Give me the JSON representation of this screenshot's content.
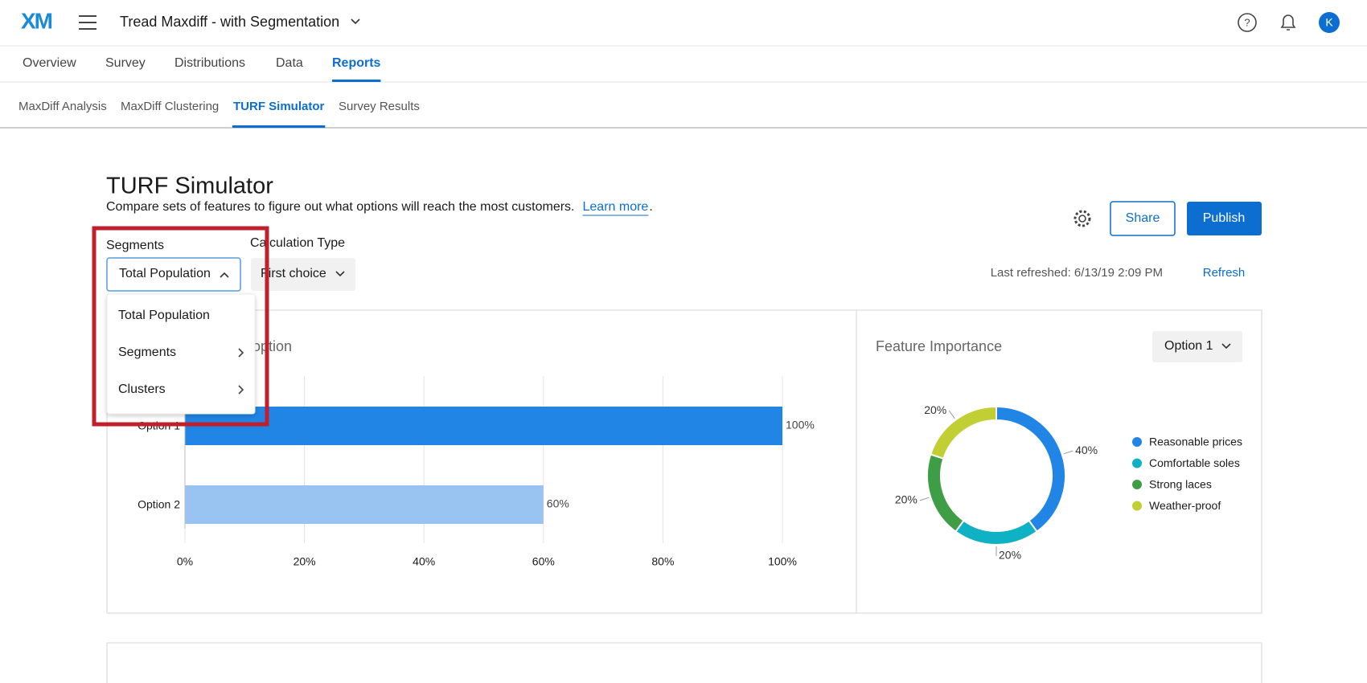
{
  "header": {
    "logo": "XM",
    "project_title": "Tread Maxdiff - with Segmentation",
    "avatar": "K"
  },
  "tabs": {
    "items": [
      "Overview",
      "Survey",
      "Distributions",
      "Data",
      "Reports"
    ],
    "active": 4
  },
  "subtabs": {
    "items": [
      "MaxDiff Analysis",
      "MaxDiff Clustering",
      "TURF Simulator",
      "Survey Results"
    ],
    "active": 2
  },
  "page": {
    "title": "TURF Simulator",
    "description": "Compare sets of features to figure out what options will reach the most customers.",
    "learn_more": "Learn more",
    "learn_more_end": ".",
    "share": "Share",
    "publish": "Publish",
    "last_refreshed": "Last refreshed: 6/13/19 2:09 PM",
    "refresh": "Refresh"
  },
  "filters": {
    "segments_label": "Segments",
    "segments_value": "Total Population",
    "segments_menu": [
      {
        "label": "Total Population",
        "submenu": false
      },
      {
        "label": "Segments",
        "submenu": true
      },
      {
        "label": "Clusters",
        "submenu": true
      }
    ],
    "calc_label": "Calculation Type",
    "calc_value": "First choice"
  },
  "chart_data": [
    {
      "type": "bar",
      "orientation": "horizontal",
      "title": "option",
      "categories": [
        "Option 1",
        "Option 2"
      ],
      "values": [
        100,
        60
      ],
      "value_labels": [
        "100%",
        "60%"
      ],
      "colors": [
        "#2185e5",
        "#99c4f2"
      ],
      "xlim": [
        0,
        100
      ],
      "xticks": [
        {
          "value": 0,
          "label": "0%"
        },
        {
          "value": 20,
          "label": "20%"
        },
        {
          "value": 40,
          "label": "40%"
        },
        {
          "value": 60,
          "label": "60%"
        },
        {
          "value": 80,
          "label": "80%"
        },
        {
          "value": 100,
          "label": "100%"
        }
      ],
      "grid": true
    },
    {
      "type": "pie",
      "donut": true,
      "title": "Feature Importance",
      "selector": "Option 1",
      "categories": [
        "Reasonable prices",
        "Comfortable soles",
        "Strong laces",
        "Weather-proof"
      ],
      "values": [
        40,
        20,
        20,
        20
      ],
      "value_labels": [
        "40%",
        "20%",
        "20%",
        "20%"
      ],
      "colors": [
        "#2185e5",
        "#0fb1c4",
        "#3f9e45",
        "#c1cf34"
      ],
      "legend": "right"
    }
  ]
}
